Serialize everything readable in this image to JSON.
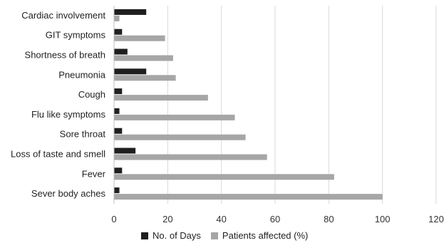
{
  "chart_data": {
    "type": "bar",
    "orientation": "horizontal",
    "categories": [
      "Cardiac involvement",
      "GIT symptoms",
      "Shortness of breath",
      "Pneumonia",
      "Cough",
      "Flu like symptoms",
      "Sore throat",
      "Loss of taste and smell",
      "Fever",
      "Sever body aches"
    ],
    "series": [
      {
        "name": "No. of Days",
        "color": "#1f1f1f",
        "values": [
          12,
          3,
          5,
          12,
          3,
          2,
          3,
          8,
          3,
          2
        ]
      },
      {
        "name": "Patients affected (%)",
        "color": "#a6a6a6",
        "values": [
          2,
          19,
          22,
          23,
          35,
          45,
          49,
          57,
          82,
          100
        ]
      }
    ],
    "xlim": [
      0,
      120
    ],
    "x_ticks": [
      "0",
      "20",
      "40",
      "60",
      "80",
      "100",
      "120"
    ],
    "grid": true,
    "legend_position": "bottom"
  }
}
